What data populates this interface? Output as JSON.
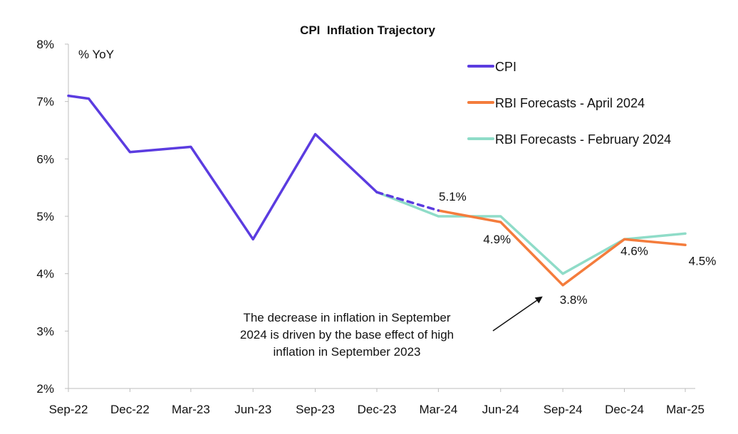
{
  "chart_data": {
    "type": "line",
    "title": "CPI  Inflation Trajectory",
    "unit_label": "% YoY",
    "xlabel": "",
    "ylabel": "",
    "x_ticks": [
      "Sep-22",
      "Dec-22",
      "Mar-23",
      "Jun-23",
      "Sep-23",
      "Dec-23",
      "Mar-24",
      "Jun-24",
      "Sep-24",
      "Dec-24",
      "Mar-25"
    ],
    "y_ticks": [
      "2%",
      "3%",
      "4%",
      "5%",
      "6%",
      "7%",
      "8%"
    ],
    "ylim": [
      2,
      8
    ],
    "grid": false,
    "legend_position": "top-right",
    "series": [
      {
        "name": "CPI",
        "color": "#5b3ce0",
        "style": "solid",
        "points": [
          {
            "x": "2022-09-01",
            "y": 7.1
          },
          {
            "x": "2022-10-01",
            "y": 7.05
          },
          {
            "x": "2022-12-01",
            "y": 6.12
          },
          {
            "x": "2023-03-01",
            "y": 6.21
          },
          {
            "x": "2023-06-01",
            "y": 4.6
          },
          {
            "x": "2023-09-01",
            "y": 6.43
          },
          {
            "x": "2023-12-01",
            "y": 5.42
          }
        ]
      },
      {
        "name": "",
        "color": "#5b3ce0",
        "style": "dashed",
        "points": [
          {
            "x": "2023-12-01",
            "y": 5.42
          },
          {
            "x": "2024-03-01",
            "y": 5.1
          }
        ]
      },
      {
        "name": "RBI Forecasts - April 2024",
        "color": "#f47c3c",
        "style": "solid",
        "points": [
          {
            "x": "2024-03-01",
            "y": 5.1
          },
          {
            "x": "2024-06-01",
            "y": 4.9
          },
          {
            "x": "2024-09-01",
            "y": 3.8
          },
          {
            "x": "2024-12-01",
            "y": 4.6
          },
          {
            "x": "2025-03-01",
            "y": 4.5
          }
        ]
      },
      {
        "name": "RBI Forecasts - February 2024",
        "color": "#8fdcc8",
        "style": "solid",
        "points": [
          {
            "x": "2023-12-01",
            "y": 5.42
          },
          {
            "x": "2024-03-01",
            "y": 5.0
          },
          {
            "x": "2024-06-01",
            "y": 5.0
          },
          {
            "x": "2024-09-01",
            "y": 4.0
          },
          {
            "x": "2024-12-01",
            "y": 4.6
          },
          {
            "x": "2025-03-01",
            "y": 4.7
          }
        ]
      }
    ],
    "data_labels": [
      {
        "x": "2024-03-01",
        "y": 5.1,
        "text": "5.1%"
      },
      {
        "x": "2024-06-01",
        "y": 4.9,
        "text": "4.9%"
      },
      {
        "x": "2024-09-01",
        "y": 3.8,
        "text": "3.8%"
      },
      {
        "x": "2024-12-01",
        "y": 4.6,
        "text": "4.6%"
      },
      {
        "x": "2025-03-01",
        "y": 4.5,
        "text": "4.5%"
      }
    ],
    "annotation": {
      "lines": [
        "The decrease in inflation in September",
        "2024 is driven by the base effect of high",
        "inflation in September 2023"
      ],
      "arrow_target": {
        "x": "2024-09-01",
        "y": 3.8
      }
    }
  }
}
